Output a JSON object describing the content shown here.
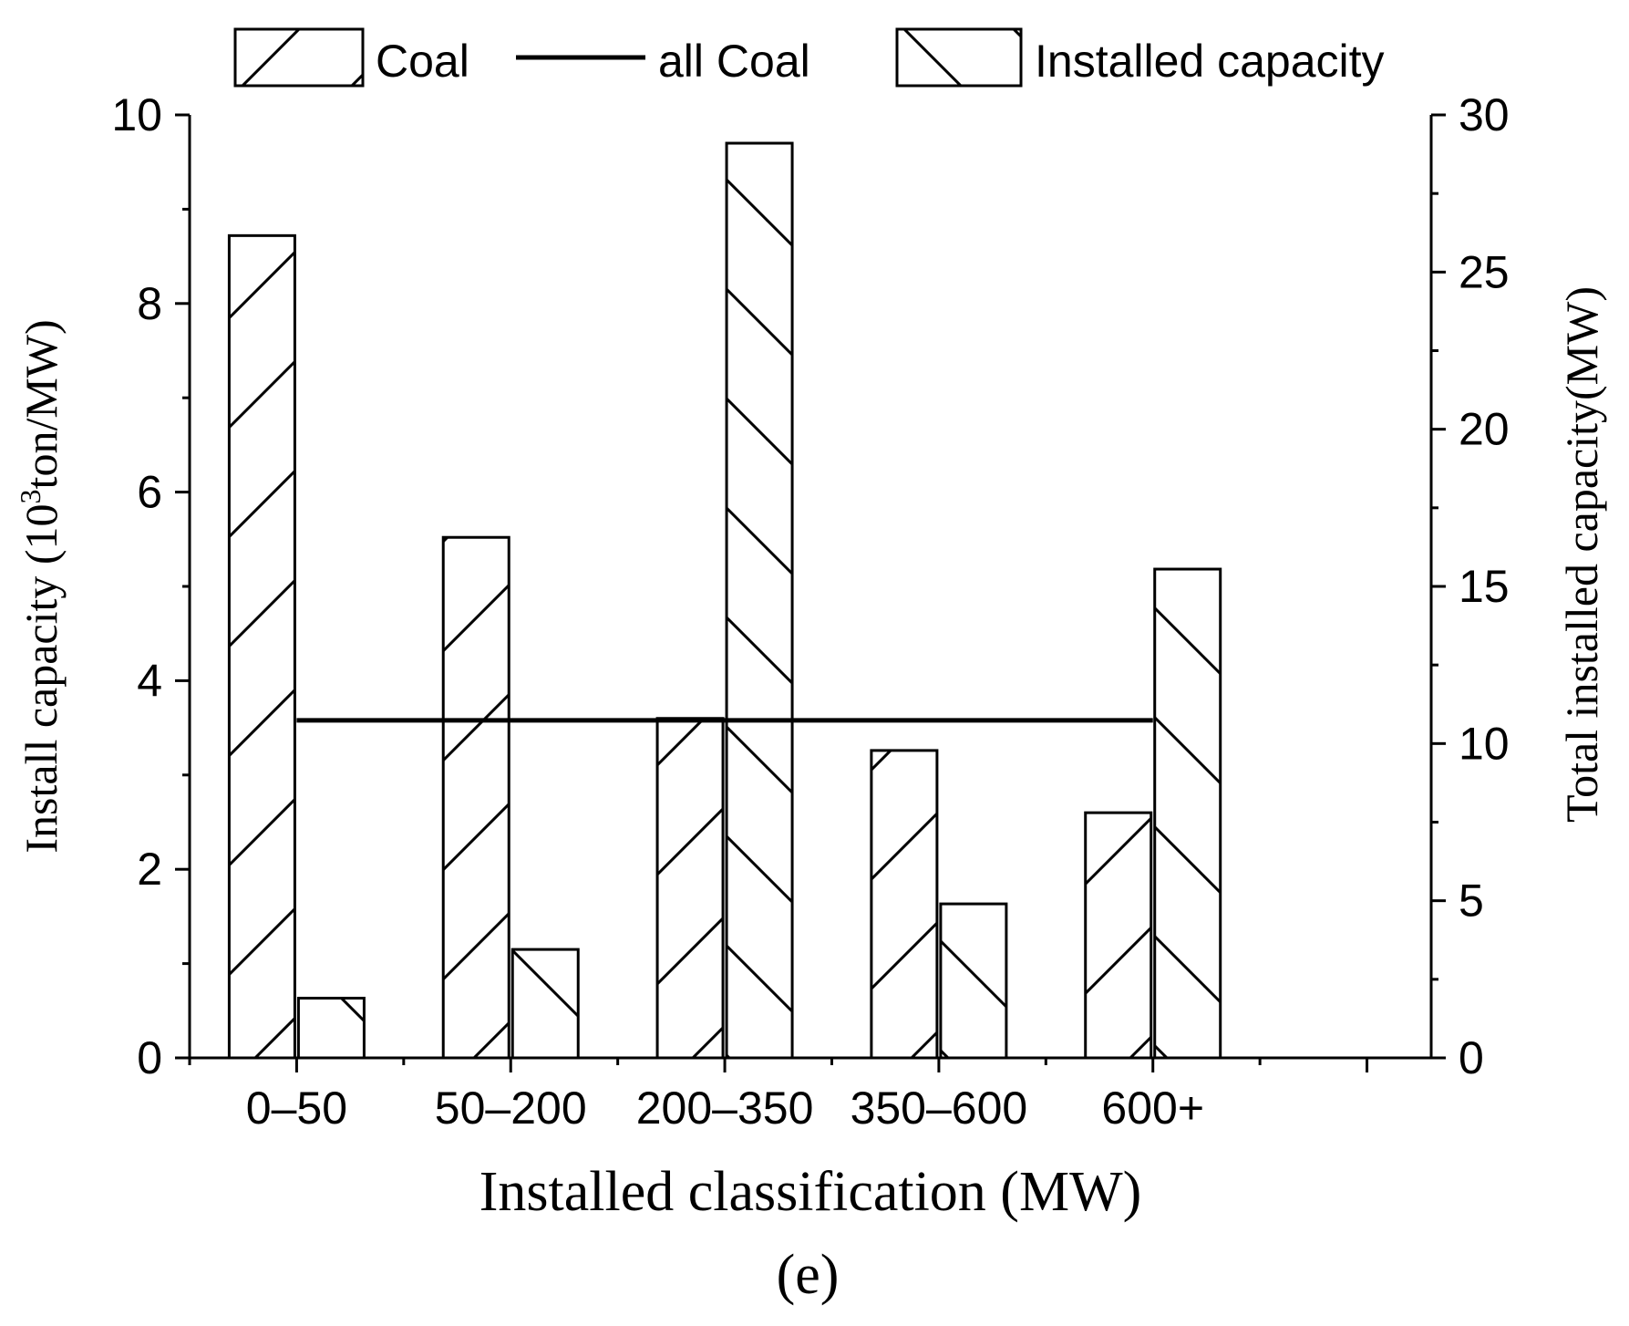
{
  "chart_data": {
    "type": "bar",
    "caption": "(e)",
    "xlabel": "Installed classification (MW)",
    "ylabel_left": {
      "prefix": "Install capacity (10",
      "superscript": "3",
      "suffix": "ton/MW)"
    },
    "ylabel_right": "Total installed capacity(MW)",
    "categories": [
      "0–50",
      "50–200",
      "200–350",
      "350–600",
      "600+"
    ],
    "ylim_left": [
      0,
      10
    ],
    "yticks_left": [
      "0",
      "2",
      "4",
      "6",
      "8",
      "10"
    ],
    "ylim_right": [
      0,
      30
    ],
    "yticks_right": [
      "0",
      "5",
      "10",
      "15",
      "20",
      "25",
      "30"
    ],
    "series": [
      {
        "name": "Coal",
        "type": "bar",
        "axis": "left",
        "hatch": "forward",
        "values": [
          8.72,
          5.52,
          3.6,
          3.26,
          2.6
        ]
      },
      {
        "name": "all Coal",
        "type": "line",
        "axis": "left",
        "value": 3.58
      },
      {
        "name": "Installed capacity",
        "type": "bar",
        "axis": "right",
        "hatch": "back",
        "values": [
          1.9,
          3.45,
          29.1,
          4.9,
          15.55
        ]
      }
    ],
    "legend_position": "top",
    "grid": false
  }
}
